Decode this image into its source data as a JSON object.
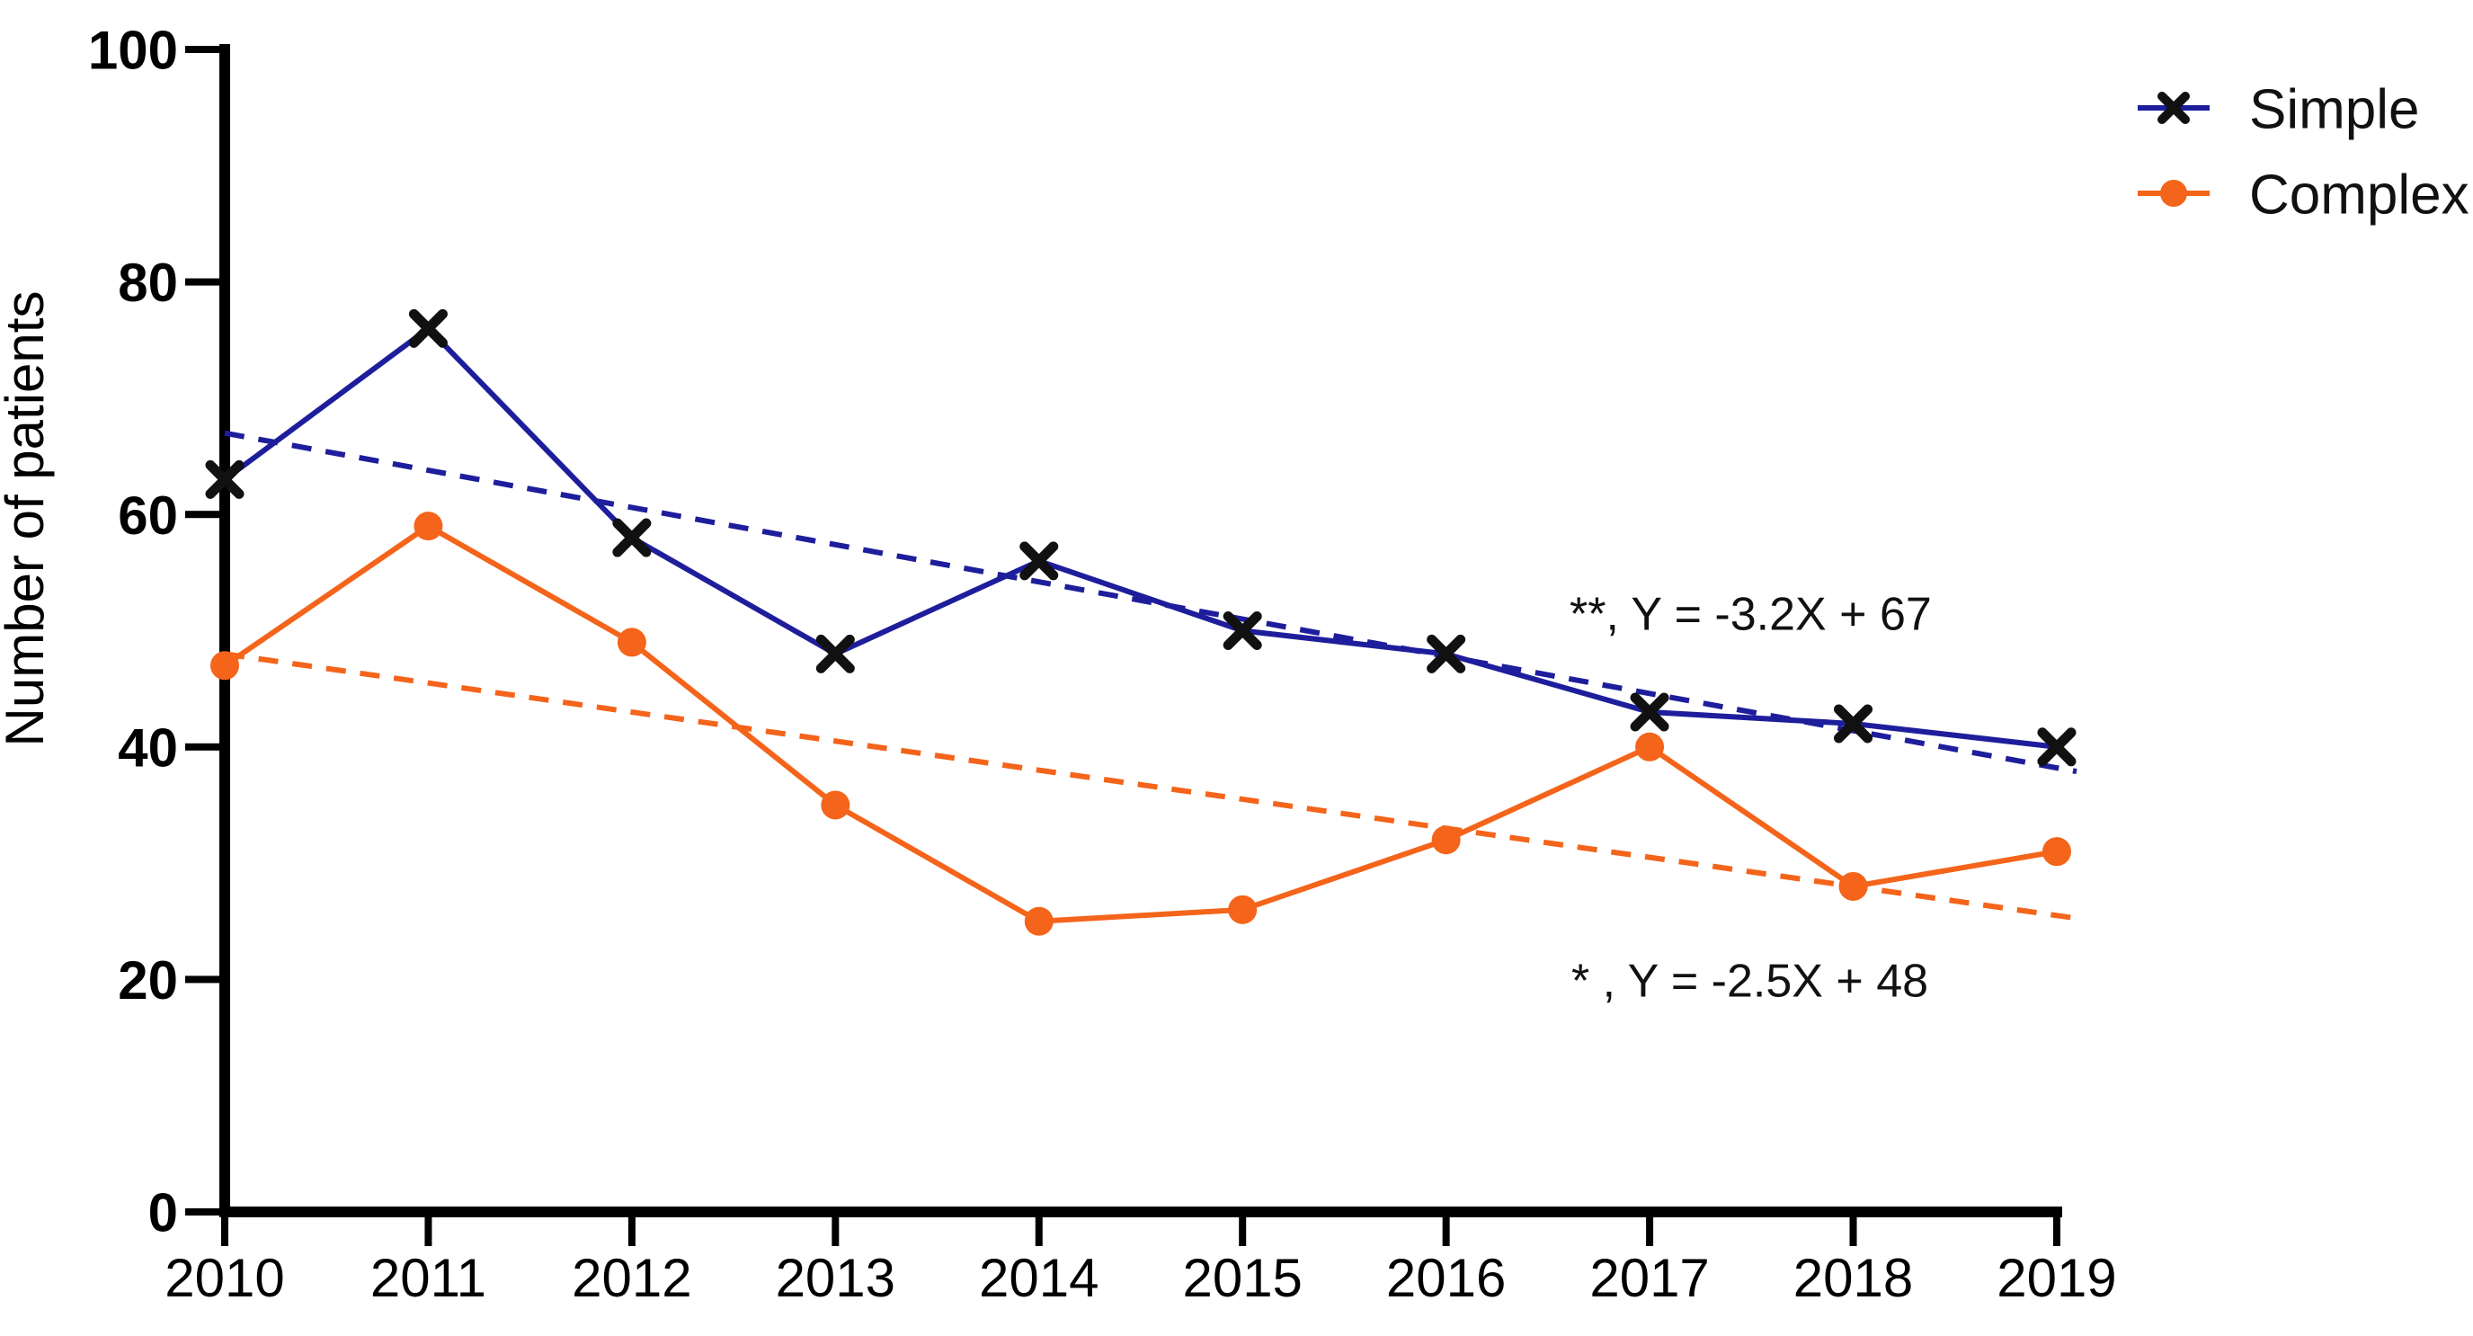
{
  "figure": {
    "background_color": "#ffffff",
    "axis_color": "#000000"
  },
  "chart_data": {
    "type": "line",
    "title": "",
    "xlabel": "",
    "ylabel": "Number of patients",
    "x_categories": [
      "2010",
      "2011",
      "2012",
      "2013",
      "2014",
      "2015",
      "2016",
      "2017",
      "2018",
      "2019"
    ],
    "y_ticks": [
      0,
      20,
      40,
      60,
      80,
      100
    ],
    "ylim": [
      0,
      100
    ],
    "grid": false,
    "legend_position": "top-right",
    "series": [
      {
        "name": "Simple",
        "color": "#1E1E9C",
        "marker": "x",
        "marker_color": "#111111",
        "line_style": "solid",
        "values": [
          63,
          76,
          58,
          48,
          56,
          50,
          48,
          43,
          42,
          40
        ],
        "trend": {
          "slope": -3.2,
          "intercept": 67,
          "style": "dashed",
          "significance": "**"
        }
      },
      {
        "name": "Complex",
        "color": "#F4641A",
        "marker": "circle",
        "marker_color": "#F4641A",
        "line_style": "solid",
        "values": [
          47,
          59,
          49,
          35,
          25,
          26,
          32,
          40,
          28,
          31
        ],
        "trend": {
          "slope": -2.5,
          "intercept": 48,
          "style": "dashed",
          "significance": "*"
        }
      }
    ],
    "annotations": [
      {
        "text": "**, Y = -3.2X + 67",
        "series": "Simple"
      },
      {
        "text": "* , Y = -2.5X + 48",
        "series": "Complex"
      }
    ]
  }
}
